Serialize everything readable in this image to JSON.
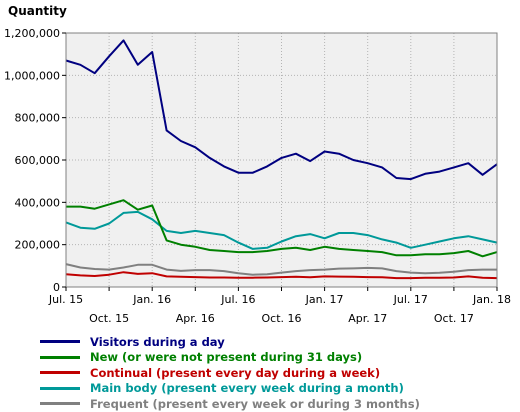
{
  "chart_data": {
    "type": "line",
    "ylabel": "Quantity",
    "ylim": [
      0,
      1200000
    ],
    "yticks": [
      0,
      200000,
      400000,
      600000,
      800000,
      1000000,
      1200000
    ],
    "ytick_labels": [
      "0",
      "200,000",
      "400,000",
      "600,000",
      "800,000",
      "1,000,000",
      "1,200,000"
    ],
    "xlim": [
      0,
      30
    ],
    "xticks_top": [
      {
        "x": 0,
        "label": "Jul. 15"
      },
      {
        "x": 6,
        "label": "Jan. 16"
      },
      {
        "x": 12,
        "label": "Jul. 16"
      },
      {
        "x": 18,
        "label": "Jan. 17"
      },
      {
        "x": 24,
        "label": "Jul. 17"
      },
      {
        "x": 30,
        "label": "Jan. 18"
      }
    ],
    "xticks_bottom": [
      {
        "x": 3,
        "label": "Oct. 15"
      },
      {
        "x": 9,
        "label": "Apr. 16"
      },
      {
        "x": 15,
        "label": "Oct. 16"
      },
      {
        "x": 21,
        "label": "Apr. 17"
      },
      {
        "x": 27,
        "label": "Oct. 17"
      }
    ],
    "grid": true,
    "legend_position": "bottom",
    "x": [
      0,
      1,
      2,
      3,
      4,
      5,
      6,
      7,
      8,
      9,
      10,
      11,
      12,
      13,
      14,
      15,
      16,
      17,
      18,
      19,
      20,
      21,
      22,
      23,
      24,
      25,
      26,
      27,
      28,
      29,
      30
    ],
    "series": [
      {
        "name": "Visitors during a day",
        "color": "#000080",
        "values": [
          1070000,
          1050000,
          1010000,
          1090000,
          1165000,
          1050000,
          1110000,
          740000,
          690000,
          660000,
          610000,
          570000,
          540000,
          540000,
          570000,
          610000,
          630000,
          595000,
          640000,
          630000,
          600000,
          585000,
          565000,
          515000,
          510000,
          535000,
          545000,
          565000,
          585000,
          530000,
          580000
        ]
      },
      {
        "name": "New (or were not present during 31 days)",
        "color": "#008000",
        "values": [
          380000,
          380000,
          370000,
          390000,
          410000,
          365000,
          385000,
          220000,
          200000,
          190000,
          175000,
          170000,
          165000,
          165000,
          170000,
          180000,
          185000,
          175000,
          190000,
          180000,
          175000,
          170000,
          165000,
          150000,
          150000,
          155000,
          155000,
          160000,
          170000,
          145000,
          165000
        ]
      },
      {
        "name": "Continual (present every day during a week)",
        "color": "#c00000",
        "values": [
          60000,
          55000,
          52000,
          58000,
          70000,
          62000,
          65000,
          50000,
          48000,
          47000,
          45000,
          45000,
          44000,
          44000,
          45000,
          47000,
          48000,
          46000,
          50000,
          49000,
          48000,
          47000,
          46000,
          42000,
          42000,
          44000,
          44000,
          45000,
          50000,
          44000,
          42000
        ]
      },
      {
        "name": "Main body (present every week during a month)",
        "color": "#009999",
        "values": [
          305000,
          280000,
          275000,
          300000,
          350000,
          355000,
          320000,
          265000,
          255000,
          265000,
          255000,
          245000,
          210000,
          180000,
          185000,
          215000,
          240000,
          250000,
          230000,
          255000,
          255000,
          245000,
          225000,
          210000,
          185000,
          200000,
          215000,
          230000,
          240000,
          225000,
          210000
        ]
      },
      {
        "name": "Frequent (present every week or during 3 months)",
        "color": "#808080",
        "values": [
          108000,
          92000,
          85000,
          82000,
          92000,
          105000,
          105000,
          82000,
          76000,
          80000,
          80000,
          75000,
          65000,
          58000,
          60000,
          68000,
          75000,
          80000,
          82000,
          87000,
          88000,
          90000,
          88000,
          75000,
          68000,
          65000,
          67000,
          72000,
          80000,
          82000,
          82000
        ]
      }
    ]
  }
}
